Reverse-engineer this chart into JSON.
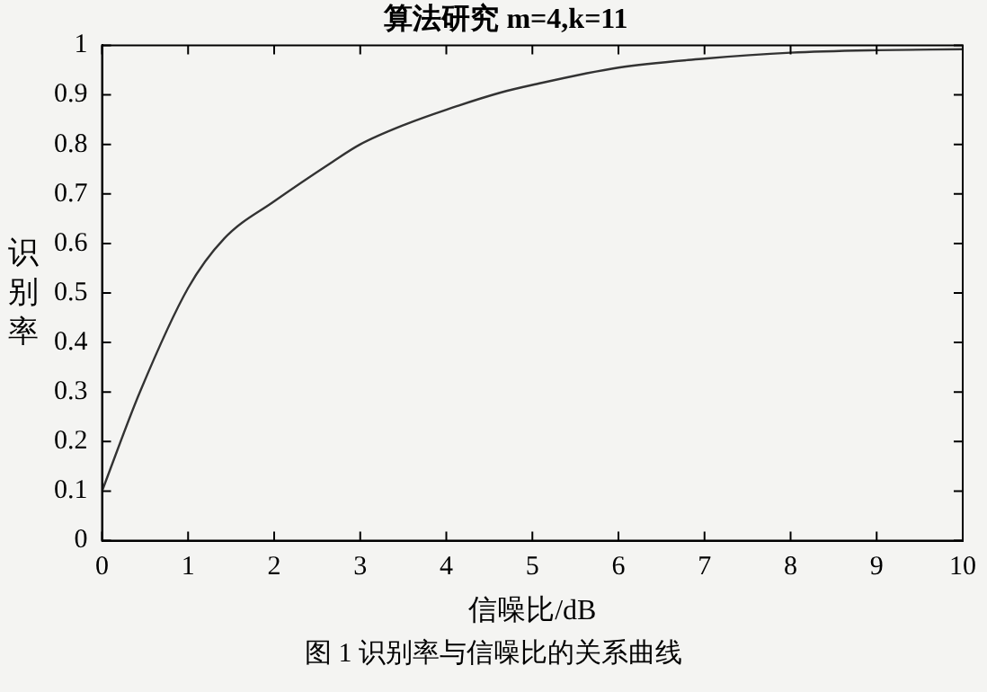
{
  "chart_data": {
    "type": "line",
    "title": "算法研究 m=4,k=11",
    "xlabel": "信噪比/dB",
    "ylabel": "识别率",
    "annotations": [
      "图 1  识别率与信噪比的关系曲线"
    ],
    "x": [
      0,
      0.44,
      1,
      1.42,
      2,
      2.68,
      3,
      3.52,
      4,
      4.64,
      5,
      6,
      7,
      8,
      9,
      10
    ],
    "series": [
      {
        "color": "#333333",
        "values": [
          0.1,
          0.3,
          0.51,
          0.61,
          0.685,
          0.765,
          0.8,
          0.84,
          0.87,
          0.905,
          0.92,
          0.955,
          0.973,
          0.985,
          0.99,
          0.992
        ]
      }
    ],
    "xlim": [
      0,
      10
    ],
    "xticks": [
      0,
      1,
      2,
      3,
      4,
      5,
      6,
      7,
      8,
      9,
      10
    ],
    "ylim": [
      0,
      1
    ],
    "yticks": [
      0,
      0.1,
      0.2,
      0.3,
      0.4,
      0.5,
      0.6,
      0.7,
      0.8,
      0.9,
      1
    ],
    "grid": false,
    "legend": false,
    "marker": "none",
    "line_style": "solid"
  }
}
